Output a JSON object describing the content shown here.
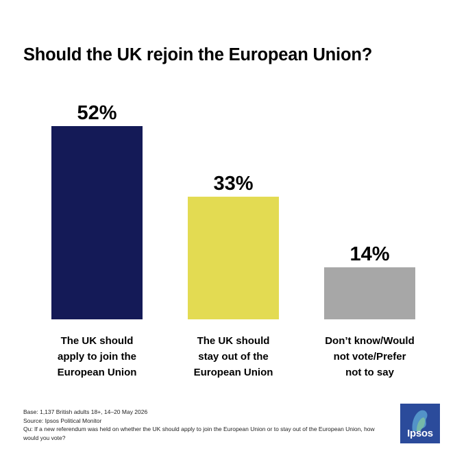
{
  "chart_data": {
    "type": "bar",
    "title": "Should the UK rejoin the European Union?",
    "categories": [
      [
        "The UK should",
        "apply to join the",
        "European Union"
      ],
      [
        "The UK should",
        "stay out of the",
        "European Union"
      ],
      [
        "Don’t know/Would",
        "not vote/Prefer",
        "not to say"
      ]
    ],
    "values": [
      52,
      33,
      14
    ],
    "value_labels": [
      "52%",
      "33%",
      "14%"
    ],
    "colors": [
      "#141a57",
      "#e3db52",
      "#a7a7a7"
    ],
    "ylim": [
      0,
      52
    ],
    "grid": false,
    "legend": "none"
  },
  "footnote": {
    "base": "Base: 1,137 British adults 18+, 14–20 May 2026",
    "source": "Source: Ipsos Political Monitor",
    "question": "Qu: If a new referendum was held on whether the UK should apply to join the European Union or to stay out of the European Union, how would you vote?"
  },
  "logo": {
    "text": "Ipsos",
    "color": "#2b4b9b"
  }
}
